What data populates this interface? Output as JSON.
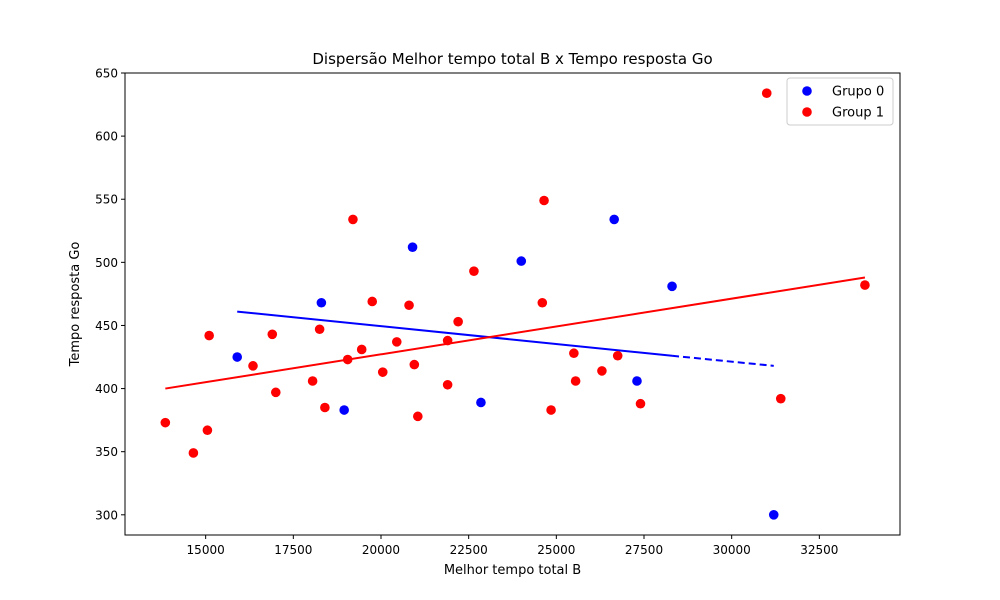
{
  "chart_data": {
    "type": "scatter",
    "title": "Dispersão Melhor tempo total B x Tempo resposta Go",
    "xlabel": "Melhor tempo total B",
    "ylabel": "Tempo resposta Go",
    "xlim": [
      12700,
      34800
    ],
    "ylim": [
      284,
      650
    ],
    "xticks": [
      15000,
      17500,
      20000,
      22500,
      25000,
      27500,
      30000,
      32500
    ],
    "yticks": [
      300,
      350,
      400,
      450,
      500,
      550,
      600,
      650
    ],
    "grid": false,
    "legend_position": "top-right",
    "series": [
      {
        "name": "Grupo 0",
        "color": "#0000ff",
        "x": [
          15900,
          18300,
          18950,
          20900,
          22850,
          24000,
          26650,
          27300,
          28300,
          31200
        ],
        "y": [
          425,
          468,
          383,
          512,
          389,
          501,
          534,
          406,
          481,
          300
        ],
        "trendline": {
          "solid": {
            "x": [
              15900,
              28300
            ],
            "y": [
              461,
              426
            ]
          },
          "dashed": {
            "x": [
              28300,
              31200
            ],
            "y": [
              426,
              418
            ]
          }
        }
      },
      {
        "name": "Group 1",
        "color": "#ff0000",
        "x": [
          13850,
          14650,
          15050,
          15100,
          16350,
          16900,
          17000,
          18050,
          18250,
          18400,
          19050,
          19200,
          19450,
          19750,
          20050,
          20450,
          20800,
          20950,
          21050,
          21900,
          21900,
          22200,
          22650,
          24600,
          24650,
          24850,
          25500,
          25550,
          26300,
          26750,
          27400,
          31000,
          31400,
          33800
        ],
        "y": [
          373,
          349,
          367,
          442,
          418,
          443,
          397,
          406,
          447,
          385,
          423,
          534,
          431,
          469,
          413,
          437,
          466,
          419,
          378,
          403,
          438,
          453,
          493,
          468,
          549,
          383,
          428,
          406,
          414,
          426,
          388,
          634,
          392,
          482
        ],
        "trendline": {
          "solid": {
            "x": [
              13850,
              33800
            ],
            "y": [
              400,
              488
            ]
          }
        }
      }
    ]
  }
}
